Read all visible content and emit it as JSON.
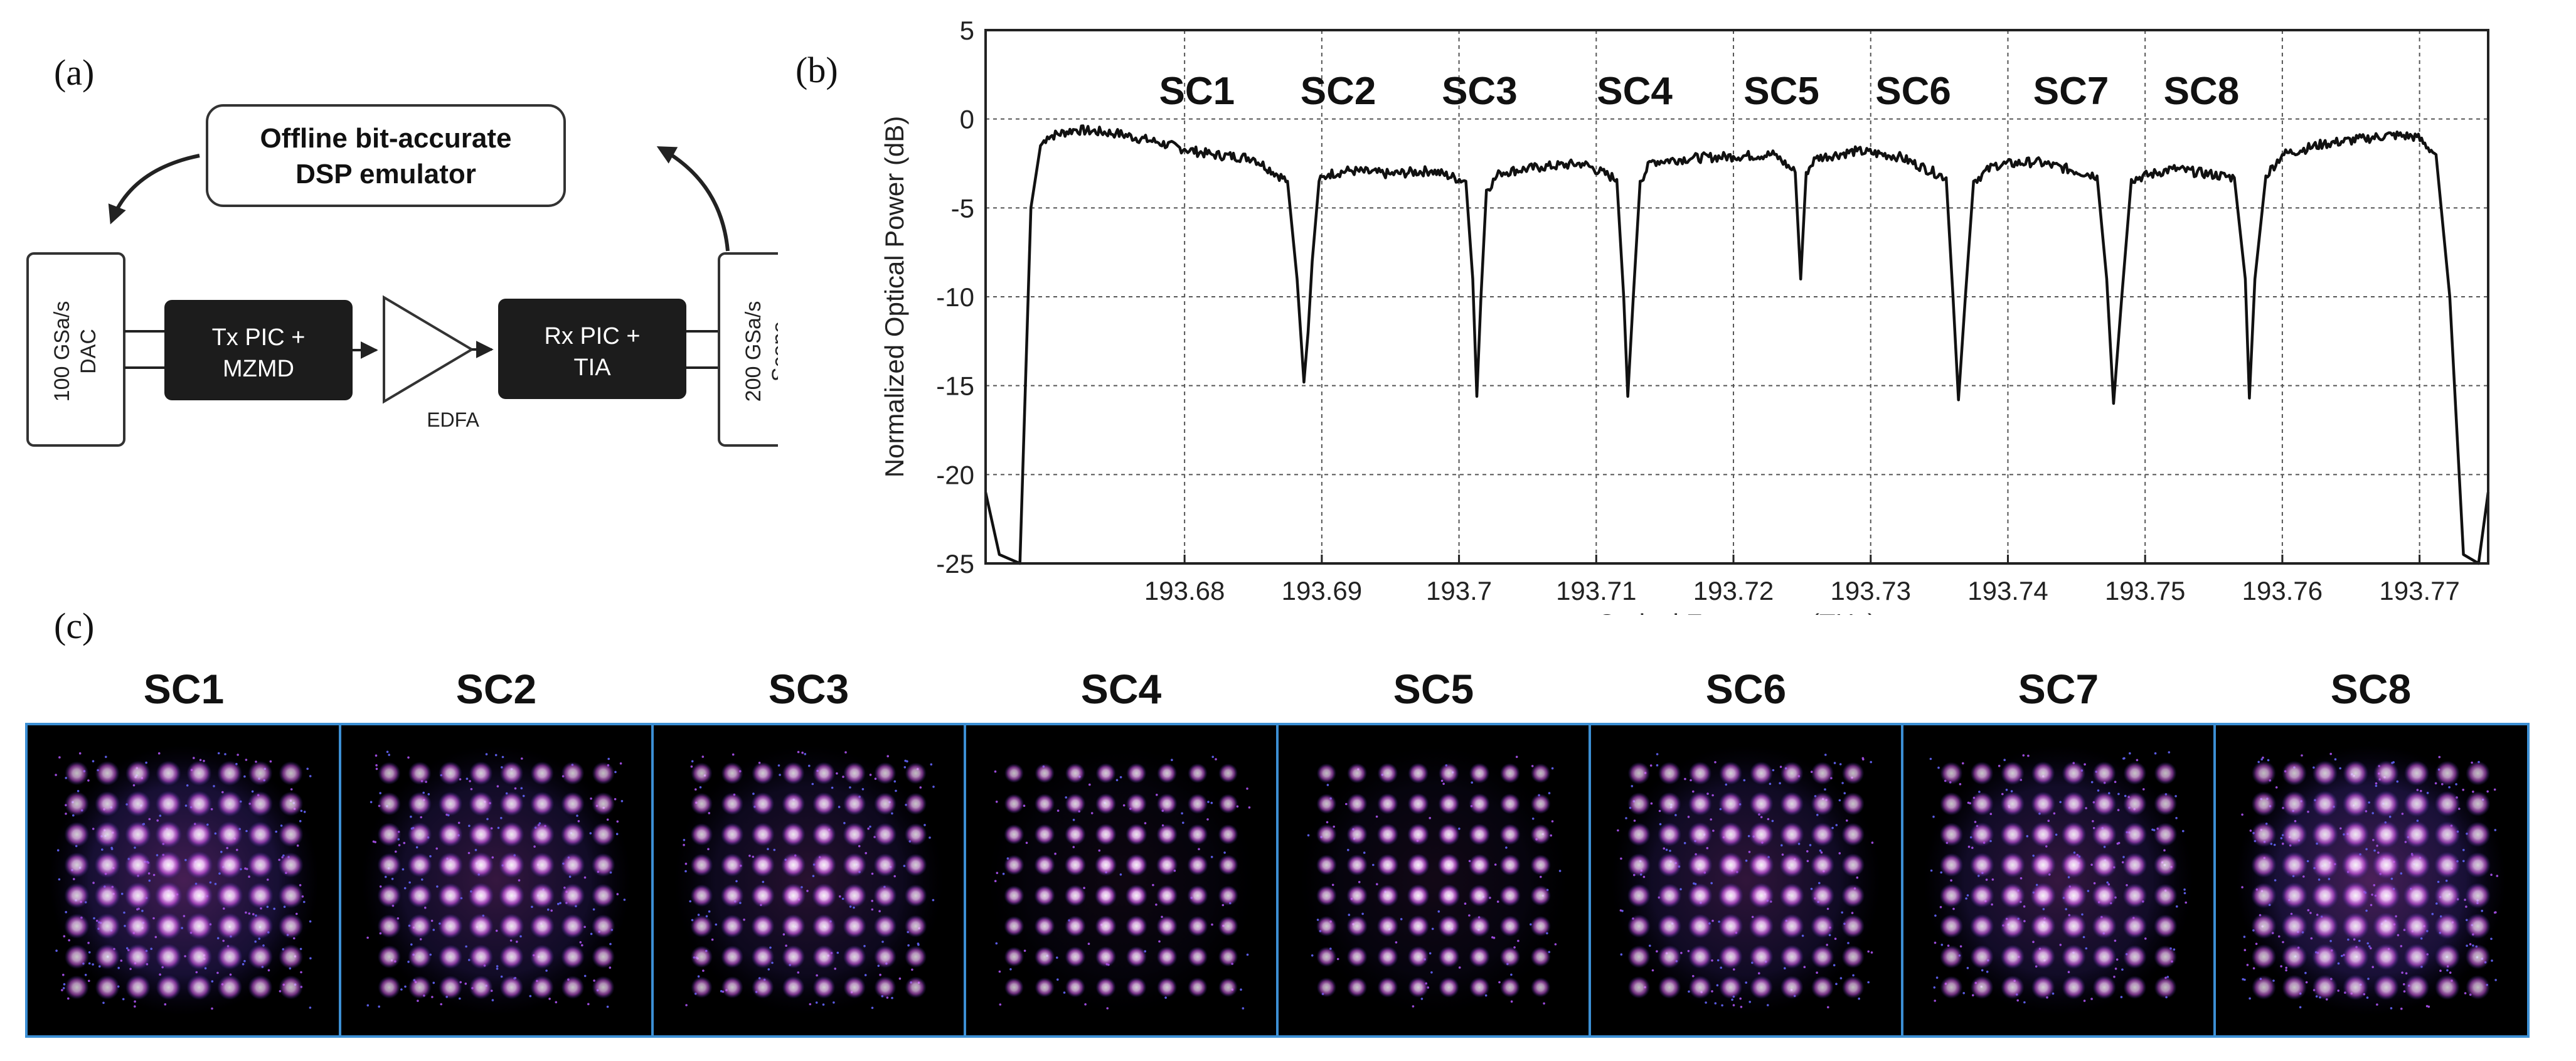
{
  "panel_labels": {
    "a": "(a)",
    "b": "(b)",
    "c": "(c)"
  },
  "block_diagram": {
    "dsp_line1": "Offline bit-accurate",
    "dsp_line2": "DSP emulator",
    "dac_line1": "100 GSa/s",
    "dac_line2": "DAC",
    "tx_line1": "Tx PIC +",
    "tx_line2": "MZMD",
    "amp_label": "EDFA",
    "rx_line1": "Rx PIC +",
    "rx_line2": "TIA",
    "scope_line1": "200 GSa/s",
    "scope_line2": "Scope"
  },
  "chart_data": {
    "type": "line",
    "title": "",
    "xlabel": "Optical Frequency(THz)",
    "ylabel": "Normalized Optical Power (dB)",
    "xlim": [
      193.6655,
      193.775
    ],
    "ylim": [
      -25,
      5
    ],
    "grid": true,
    "x_ticks": [
      193.68,
      193.69,
      193.7,
      193.71,
      193.72,
      193.73,
      193.74,
      193.75,
      193.76,
      193.77
    ],
    "x_tick_labels": [
      "193.68",
      "193.69",
      "193.7",
      "193.71",
      "193.72",
      "193.73",
      "193.74",
      "193.75",
      "193.76",
      "193.77"
    ],
    "y_ticks": [
      5,
      0,
      -5,
      -10,
      -15,
      -20,
      -25
    ],
    "y_tick_labels": [
      "5",
      "0",
      "-5",
      "-10",
      "-15",
      "-20",
      "-25"
    ],
    "annotations": [
      "SC1",
      "SC2",
      "SC3",
      "SC4",
      "SC5",
      "SC6",
      "SC7",
      "SC8"
    ],
    "annotation_x": [
      193.6809,
      193.6912,
      193.7015,
      193.7128,
      193.7235,
      193.7331,
      193.7446,
      193.7541
    ],
    "series": [
      {
        "name": "spectrum",
        "x": [
          193.6655,
          193.6665,
          193.668,
          193.6688,
          193.6695,
          193.67,
          193.672,
          193.675,
          193.678,
          193.68,
          193.682,
          193.685,
          193.6875,
          193.6882,
          193.6887,
          193.689,
          193.6893,
          193.6898,
          193.6905,
          193.692,
          193.695,
          193.698,
          193.7005,
          193.701,
          193.7013,
          193.7016,
          193.702,
          193.703,
          193.706,
          193.709,
          193.7115,
          193.712,
          193.7123,
          193.7127,
          193.7132,
          193.714,
          193.717,
          193.72,
          193.723,
          193.7245,
          193.7249,
          193.7253,
          193.726,
          193.729,
          193.732,
          193.7355,
          193.736,
          193.7364,
          193.7369,
          193.7375,
          193.739,
          193.742,
          193.7465,
          193.7472,
          193.7477,
          193.7483,
          193.749,
          193.752,
          193.7565,
          193.7573,
          193.7576,
          193.758,
          193.7588,
          193.76,
          193.763,
          193.766,
          193.768,
          193.7698,
          193.7712,
          193.7722,
          193.7732,
          193.7743,
          193.775
        ],
        "y": [
          -21,
          -24.5,
          -25,
          -5,
          -1.5,
          -1.0,
          -0.6,
          -0.8,
          -1.3,
          -1.7,
          -2.0,
          -2.2,
          -3.5,
          -9,
          -14.8,
          -12,
          -8,
          -3.5,
          -3.1,
          -2.9,
          -3.1,
          -2.9,
          -3.5,
          -9,
          -15.6,
          -10,
          -4,
          -3.0,
          -2.7,
          -2.5,
          -3.4,
          -10,
          -15.6,
          -10,
          -3.5,
          -2.4,
          -2.2,
          -2.1,
          -2.0,
          -3.0,
          -9.0,
          -3.0,
          -2.2,
          -1.8,
          -2.1,
          -3.3,
          -10,
          -15.8,
          -10,
          -3.5,
          -2.6,
          -2.4,
          -3.2,
          -9,
          -16.0,
          -10,
          -3.4,
          -2.8,
          -3.3,
          -9,
          -15.7,
          -9,
          -3.2,
          -2.0,
          -1.4,
          -1.1,
          -0.9,
          -1.0,
          -2.0,
          -10,
          -24.5,
          -25,
          -21
        ]
      }
    ]
  },
  "constellation_labels": [
    "SC1",
    "SC2",
    "SC3",
    "SC4",
    "SC5",
    "SC6",
    "SC7",
    "SC8"
  ]
}
